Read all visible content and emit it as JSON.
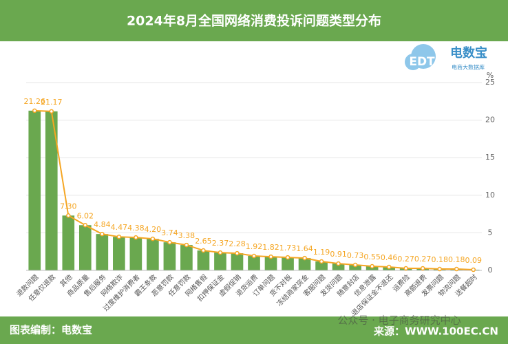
{
  "header": {
    "title": "2024年8月全国网络消费投诉问题类型分布"
  },
  "logo": {
    "mark": "EDT",
    "name": "电数宝",
    "tagline": "电商大数据库"
  },
  "chart_data": {
    "type": "bar",
    "overlay": "line",
    "categories": [
      "退款问题",
      "任意仅退款",
      "其他",
      "商品质量",
      "售后服务",
      "网络欺诈",
      "过度维护消费者",
      "霸王条款",
      "恶意罚款",
      "任意罚款",
      "网络售假",
      "扣押保证金",
      "虚假促销",
      "退货运费",
      "订单问题",
      "货不对板",
      "冻结商家资金",
      "客服问题",
      "发货问题",
      "随意封店",
      "信息泄露",
      "退店保证金不退还",
      "运费险",
      "高额退费",
      "发票问题",
      "物流问题",
      "送餐超时"
    ],
    "values": [
      21.26,
      21.17,
      7.3,
      6.02,
      4.84,
      4.47,
      4.38,
      4.2,
      3.74,
      3.38,
      2.65,
      2.37,
      2.28,
      1.92,
      1.82,
      1.73,
      1.64,
      1.19,
      0.91,
      0.73,
      0.55,
      0.46,
      0.27,
      0.27,
      0.18,
      0.18,
      0.09
    ],
    "value_labels": [
      "21.26",
      "21.17",
      "7.30",
      "6.02",
      "4.84",
      "4.47",
      "4.38",
      "4.20",
      "3.74",
      "3.38",
      "2.65",
      "2.37",
      "2.28",
      "1.92",
      "1.82",
      "1.73",
      "1.64",
      "1.19",
      "0.91",
      "0.73",
      "0.55",
      "0.46",
      "0.27",
      "0.27",
      "0.18",
      "0.18",
      "0.09"
    ],
    "bar_color": "#6aa84f",
    "line_color": "#f5a623",
    "y_unit": "%",
    "ylim": [
      0,
      25
    ],
    "yticks": [
      0,
      5,
      10,
      15,
      20,
      25
    ],
    "grid": true
  },
  "footer": {
    "credit": "图表编制：电数宝",
    "source": "来源：WWW.100EC.CN",
    "watermark": "公众号 · 电子商务研究中心"
  }
}
